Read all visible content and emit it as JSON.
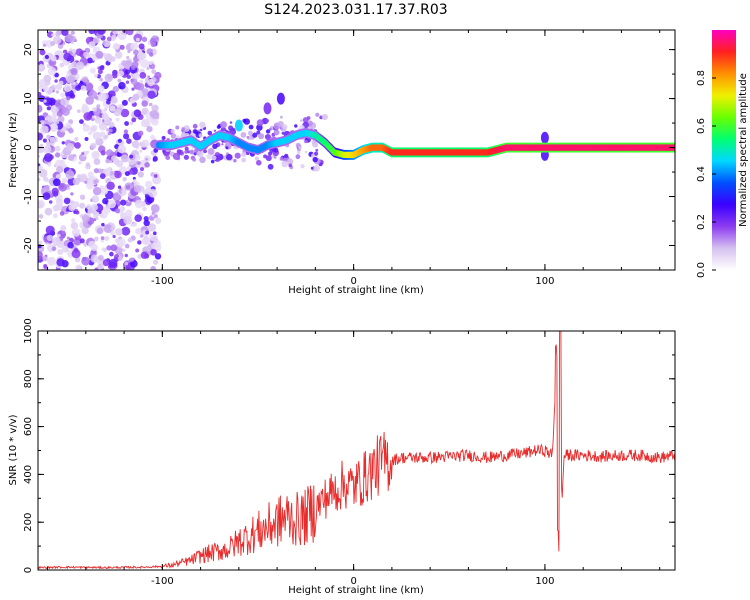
{
  "title": "S124.2023.031.17.37.R03",
  "colors": {
    "snr_line": "#e82b2b",
    "colormap": [
      "#ffffff",
      "#d6c0f0",
      "#8c3cf0",
      "#3a00ff",
      "#0050ff",
      "#00d8ff",
      "#00ff70",
      "#6aff00",
      "#f0f000",
      "#ff9000",
      "#ff2020",
      "#ff00c0"
    ]
  },
  "chart_data": [
    {
      "type": "heatmap",
      "title": "S124.2023.031.17.37.R03",
      "xlabel": "Height of straight line (km)",
      "ylabel": "Frequency (Hz)",
      "xlim": [
        -165,
        168
      ],
      "ylim": [
        -25,
        24
      ],
      "x_ticks": [
        "-100",
        "0",
        "100"
      ],
      "x_tick_values": [
        -100,
        0,
        100
      ],
      "y_ticks": [
        "-20",
        "-10",
        "0",
        "10",
        "20"
      ],
      "y_tick_values": [
        -20,
        -10,
        0,
        10,
        20
      ],
      "colorbar": {
        "label": "Normalized spectral amplitude",
        "range": [
          0,
          1
        ],
        "ticks": [
          "0.0",
          "0.2",
          "0.4",
          "0.6",
          "0.8"
        ],
        "tick_values": [
          0,
          0.2,
          0.4,
          0.6,
          0.8
        ]
      },
      "noise_region": {
        "x_range": [
          -165,
          -102
        ],
        "y_range": [
          -25,
          24
        ]
      },
      "ridge": {
        "x": [
          -102,
          -95,
          -90,
          -85,
          -80,
          -75,
          -70,
          -65,
          -60,
          -55,
          -50,
          -45,
          -40,
          -35,
          -30,
          -25,
          -20,
          -15,
          -10,
          -5,
          0,
          5,
          10,
          15,
          20,
          30,
          40,
          50,
          60,
          70,
          80,
          90,
          100,
          110,
          120,
          130,
          140,
          150,
          160,
          168
        ],
        "y": [
          0.5,
          0.5,
          1.0,
          1.5,
          0.2,
          1.5,
          2.5,
          2.0,
          1.0,
          0.0,
          -0.5,
          0.5,
          1.0,
          1.5,
          2.5,
          3.0,
          2.5,
          1.0,
          -1.0,
          -1.5,
          -1.5,
          -0.5,
          0.0,
          0.0,
          -1.0,
          -1.0,
          -1.0,
          -1.0,
          -1.0,
          -1.0,
          0.0,
          0.0,
          0.0,
          0.0,
          0.0,
          0.0,
          0.0,
          0.0,
          0.0,
          0.0
        ],
        "amplitude": [
          0.4,
          0.45,
          0.45,
          0.45,
          0.45,
          0.45,
          0.45,
          0.45,
          0.4,
          0.4,
          0.4,
          0.4,
          0.45,
          0.45,
          0.45,
          0.45,
          0.5,
          0.55,
          0.6,
          0.7,
          0.75,
          0.8,
          0.85,
          0.85,
          0.9,
          0.9,
          0.9,
          0.9,
          0.9,
          0.9,
          0.95,
          0.95,
          0.95,
          0.95,
          0.95,
          0.95,
          0.95,
          0.95,
          0.95,
          0.95
        ]
      },
      "features": [
        {
          "x": -60,
          "y": 4.5,
          "amplitude": 0.45
        },
        {
          "x": -45,
          "y": 8,
          "amplitude": 0.2
        },
        {
          "x": -38,
          "y": 10,
          "amplitude": 0.25
        },
        {
          "x": 100,
          "y": 2,
          "amplitude": 0.25
        },
        {
          "x": 100,
          "y": -1.5,
          "amplitude": 0.25
        }
      ]
    },
    {
      "type": "line",
      "xlabel": "Height of straight line (km)",
      "ylabel": "SNR (10 * v/v)",
      "xlim": [
        -165,
        168
      ],
      "ylim": [
        0,
        1000
      ],
      "x_ticks": [
        "-100",
        "0",
        "100"
      ],
      "x_tick_values": [
        -100,
        0,
        100
      ],
      "y_ticks": [
        "0",
        "200",
        "400",
        "600",
        "800",
        "1000"
      ],
      "y_tick_values": [
        0,
        200,
        400,
        600,
        800,
        1000
      ],
      "series": [
        {
          "x": [
            -165,
            -150,
            -130,
            -110,
            -100,
            -95,
            -90,
            -85,
            -80,
            -75,
            -70,
            -65,
            -60,
            -55,
            -50,
            -45,
            -40,
            -35,
            -30,
            -25,
            -20,
            -15,
            -10,
            -5,
            0,
            5,
            10,
            15,
            20,
            25,
            30,
            40,
            50,
            60,
            70,
            80,
            90,
            95,
            100,
            104,
            106,
            107,
            108,
            109,
            110,
            115,
            120,
            130,
            140,
            150,
            160,
            168
          ],
          "y": [
            10,
            12,
            10,
            12,
            15,
            20,
            30,
            40,
            60,
            70,
            80,
            90,
            120,
            140,
            160,
            180,
            200,
            220,
            210,
            220,
            260,
            300,
            330,
            360,
            350,
            380,
            420,
            450,
            460,
            470,
            470,
            470,
            475,
            480,
            470,
            480,
            490,
            500,
            500,
            480,
            880,
            150,
            950,
            300,
            480,
            480,
            480,
            475,
            480,
            480,
            470,
            480
          ]
        }
      ]
    }
  ]
}
